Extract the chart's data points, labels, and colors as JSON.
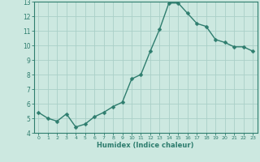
{
  "x": [
    0,
    1,
    2,
    3,
    4,
    5,
    6,
    7,
    8,
    9,
    10,
    11,
    12,
    13,
    14,
    15,
    16,
    17,
    18,
    19,
    20,
    21,
    22,
    23
  ],
  "y": [
    5.4,
    5.0,
    4.8,
    5.3,
    4.4,
    4.6,
    5.1,
    5.4,
    5.8,
    6.1,
    7.7,
    8.0,
    9.6,
    11.1,
    12.9,
    12.9,
    12.2,
    11.5,
    11.3,
    10.4,
    10.2,
    9.9,
    9.9,
    9.6
  ],
  "xlabel": "Humidex (Indice chaleur)",
  "xlim": [
    -0.5,
    23.5
  ],
  "ylim": [
    4,
    13
  ],
  "yticks": [
    4,
    5,
    6,
    7,
    8,
    9,
    10,
    11,
    12,
    13
  ],
  "xticks": [
    0,
    1,
    2,
    3,
    4,
    5,
    6,
    7,
    8,
    9,
    10,
    11,
    12,
    13,
    14,
    15,
    16,
    17,
    18,
    19,
    20,
    21,
    22,
    23
  ],
  "line_color": "#2e7d6e",
  "marker_color": "#2e7d6e",
  "bg_color": "#cce8e0",
  "grid_color": "#aacfc7",
  "axis_color": "#2e7d6e",
  "tick_label_color": "#2e7d6e",
  "xlabel_color": "#2e7d6e",
  "linewidth": 1.0,
  "markersize": 2.5
}
